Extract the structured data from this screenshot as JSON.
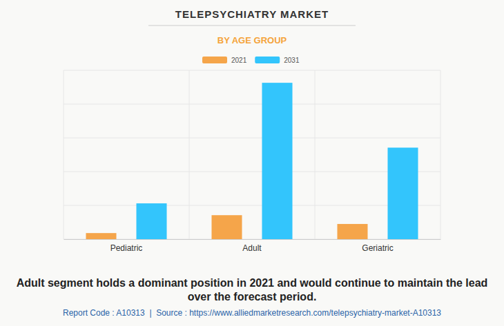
{
  "chart_data": {
    "type": "bar",
    "title": "TELEPSYCHIATRY MARKET",
    "subtitle": "BY AGE GROUP",
    "categories": [
      "Pediatric",
      "Adult",
      "Geriatric"
    ],
    "series": [
      {
        "name": "2021",
        "color": "#f5a54a",
        "values": [
          0.18,
          0.71,
          0.45
        ]
      },
      {
        "name": "2031",
        "color": "#33c5fc",
        "values": [
          1.06,
          4.63,
          2.71
        ]
      }
    ],
    "ylim": [
      0,
      5
    ],
    "yticks": [
      0,
      1,
      2,
      3,
      4,
      5
    ],
    "grid": true,
    "tick_labels": "x",
    "legend": "top",
    "annotations": [
      "Adult segment holds a dominant position in 2021 and would continue to maintain the lead over the forecast period.",
      "Report Code : A10313  |  Source : https://www.alliedmarketresearch.com/telepsychiatry-market-A10313"
    ]
  }
}
